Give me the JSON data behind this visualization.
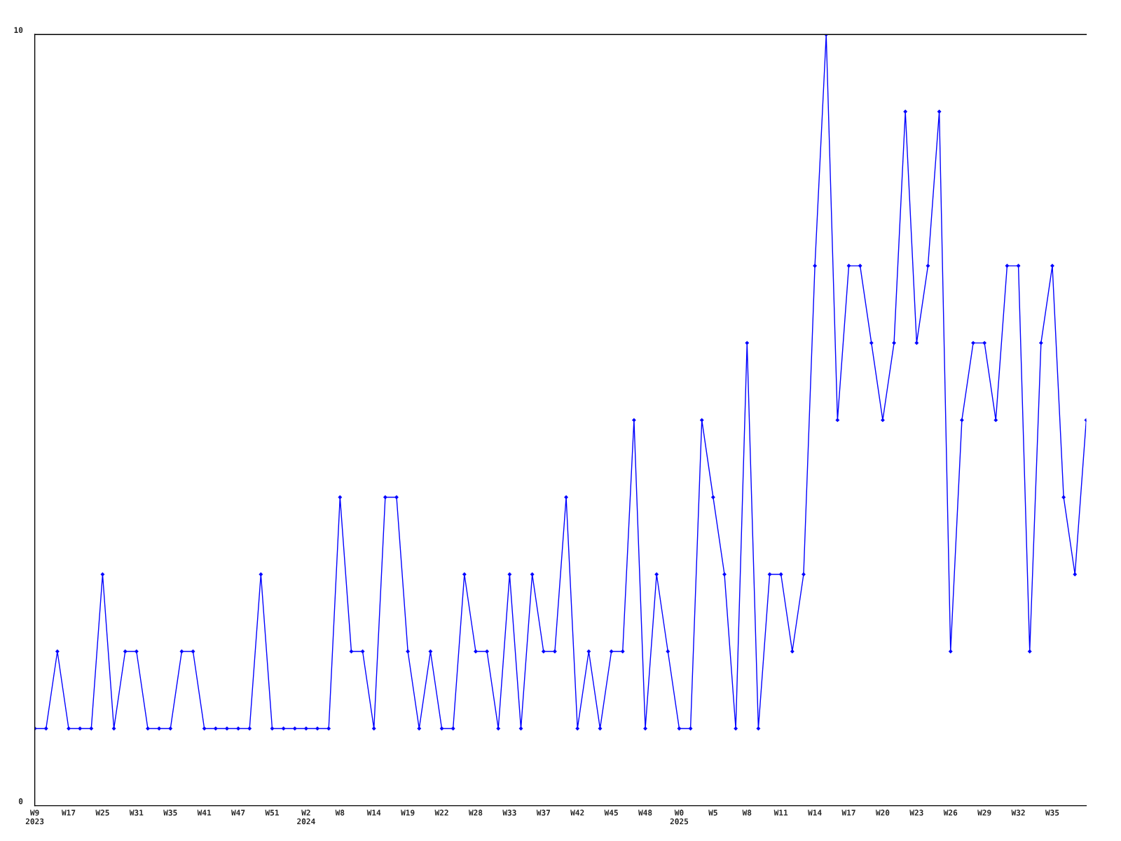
{
  "chart_data": {
    "type": "line",
    "categories": [
      "W9\n2023",
      null,
      null,
      "W17",
      null,
      null,
      "W25",
      null,
      null,
      "W31",
      null,
      null,
      "W35",
      null,
      null,
      "W41",
      null,
      null,
      "W47",
      null,
      null,
      "W51",
      null,
      null,
      "W2\n2024",
      null,
      null,
      "W8",
      null,
      null,
      "W14",
      null,
      null,
      "W19",
      null,
      null,
      "W22",
      null,
      null,
      "W28",
      null,
      null,
      "W33",
      null,
      null,
      "W37",
      null,
      null,
      "W42",
      null,
      null,
      "W45",
      null,
      null,
      "W48",
      null,
      null,
      "W0\n2025",
      null,
      null,
      "W5",
      null,
      null,
      "W8",
      null,
      null,
      "W11",
      null,
      null,
      "W14",
      null,
      null,
      "W17",
      null,
      null,
      "W20",
      null,
      null,
      "W23",
      null,
      null,
      "W26",
      null,
      null,
      "W29",
      null,
      null,
      "W32",
      null,
      null,
      "W35",
      null,
      null,
      null
    ],
    "series": [
      {
        "color": "#0000ff",
        "values": [
          1,
          1,
          2,
          1,
          1,
          1,
          3,
          1,
          2,
          2,
          1,
          1,
          1,
          2,
          2,
          1,
          1,
          1,
          1,
          1,
          3,
          1,
          1,
          1,
          1,
          1,
          1,
          4,
          2,
          2,
          1,
          4,
          4,
          2,
          1,
          2,
          1,
          1,
          3,
          2,
          2,
          1,
          3,
          1,
          3,
          2,
          2,
          4,
          1,
          2,
          1,
          2,
          2,
          5,
          1,
          3,
          2,
          1,
          1,
          5,
          4,
          3,
          1,
          6,
          1,
          3,
          3,
          2,
          3,
          7,
          10,
          5,
          7,
          7,
          6,
          5,
          6,
          9,
          6,
          7,
          9,
          2,
          5,
          6,
          6,
          5,
          7,
          7,
          2,
          6,
          7,
          4,
          3,
          5
        ]
      }
    ],
    "ylim": [
      0,
      10
    ],
    "yticks": [
      0,
      10
    ],
    "grid": false,
    "marker": "diamond",
    "line_style": "solid"
  }
}
